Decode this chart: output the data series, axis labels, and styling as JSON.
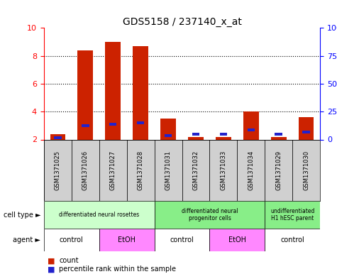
{
  "title": "GDS5158 / 237140_x_at",
  "samples": [
    "GSM1371025",
    "GSM1371026",
    "GSM1371027",
    "GSM1371028",
    "GSM1371031",
    "GSM1371032",
    "GSM1371033",
    "GSM1371034",
    "GSM1371029",
    "GSM1371030"
  ],
  "count_bottom": [
    2,
    2,
    2,
    2,
    2,
    2,
    2,
    2,
    2,
    2
  ],
  "count_top": [
    2.4,
    8.4,
    9.0,
    8.7,
    3.5,
    2.2,
    2.2,
    4.0,
    2.2,
    3.6
  ],
  "percentile_bottom": [
    2.05,
    2.9,
    3.0,
    3.1,
    2.2,
    2.3,
    2.3,
    2.6,
    2.3,
    2.45
  ],
  "percentile_height": [
    0.18,
    0.18,
    0.18,
    0.18,
    0.18,
    0.18,
    0.18,
    0.18,
    0.18,
    0.18
  ],
  "ylim": [
    2,
    10
  ],
  "yticks_left": [
    2,
    4,
    6,
    8,
    10
  ],
  "yticks_right": [
    0,
    25,
    50,
    75,
    100
  ],
  "bar_color": "#cc2200",
  "percentile_color": "#2222cc",
  "cell_type_groups": [
    {
      "label": "differentiated neural rosettes",
      "start": 0,
      "end": 4,
      "color": "#ccffcc"
    },
    {
      "label": "differentiated neural\nprogenitor cells",
      "start": 4,
      "end": 8,
      "color": "#88ee88"
    },
    {
      "label": "undifferentiated\nH1 hESC parent",
      "start": 8,
      "end": 10,
      "color": "#88ee88"
    }
  ],
  "agent_groups": [
    {
      "label": "control",
      "start": 0,
      "end": 2,
      "color": "#ffffff"
    },
    {
      "label": "EtOH",
      "start": 2,
      "end": 4,
      "color": "#ff88ff"
    },
    {
      "label": "control",
      "start": 4,
      "end": 6,
      "color": "#ffffff"
    },
    {
      "label": "EtOH",
      "start": 6,
      "end": 8,
      "color": "#ff88ff"
    },
    {
      "label": "control",
      "start": 8,
      "end": 10,
      "color": "#ffffff"
    }
  ],
  "legend_count_color": "#cc2200",
  "legend_percentile_color": "#2222cc",
  "bar_width": 0.55
}
